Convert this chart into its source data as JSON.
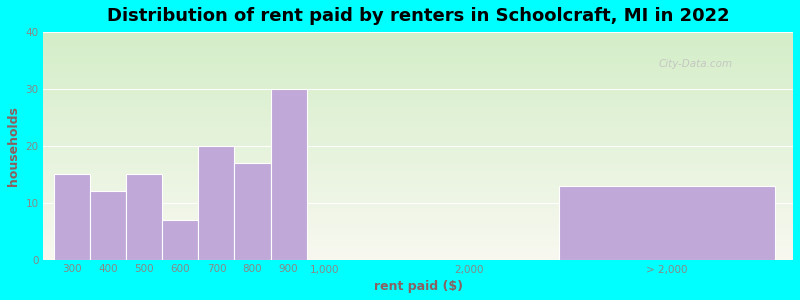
{
  "title": "Distribution of rent paid by renters in Schoolcraft, MI in 2022",
  "xlabel": "rent paid ($)",
  "ylabel": "households",
  "figure_bg": "#00FFFF",
  "plot_bg_top": "#d4eec8",
  "plot_bg_bottom": "#f8f8f0",
  "bar_color": "#c0a8d8",
  "bar_edge_color": "#ffffff",
  "values": [
    15,
    12,
    15,
    7,
    20,
    17,
    30,
    13
  ],
  "bar_left": [
    0,
    1,
    2,
    3,
    4,
    5,
    6,
    14
  ],
  "bar_widths": [
    1,
    1,
    1,
    1,
    1,
    1,
    1,
    6
  ],
  "tick_positions": [
    0.5,
    1.5,
    2.5,
    3.5,
    4.5,
    5.5,
    6.5,
    7.5,
    11.5,
    17.0
  ],
  "tick_labels": [
    "300",
    "400",
    "500",
    "600",
    "700",
    "800",
    "900",
    "1,000",
    "2,000",
    "> 2,000"
  ],
  "ylim": [
    0,
    40
  ],
  "yticks": [
    0,
    10,
    20,
    30,
    40
  ],
  "xlim": [
    -0.3,
    20.5
  ],
  "title_fontsize": 13,
  "axis_label_fontsize": 9,
  "tick_fontsize": 7.5,
  "ylabel_color": "#8B6060",
  "xlabel_color": "#8B6060",
  "tick_color": "#888888",
  "watermark": "City-Data.com"
}
